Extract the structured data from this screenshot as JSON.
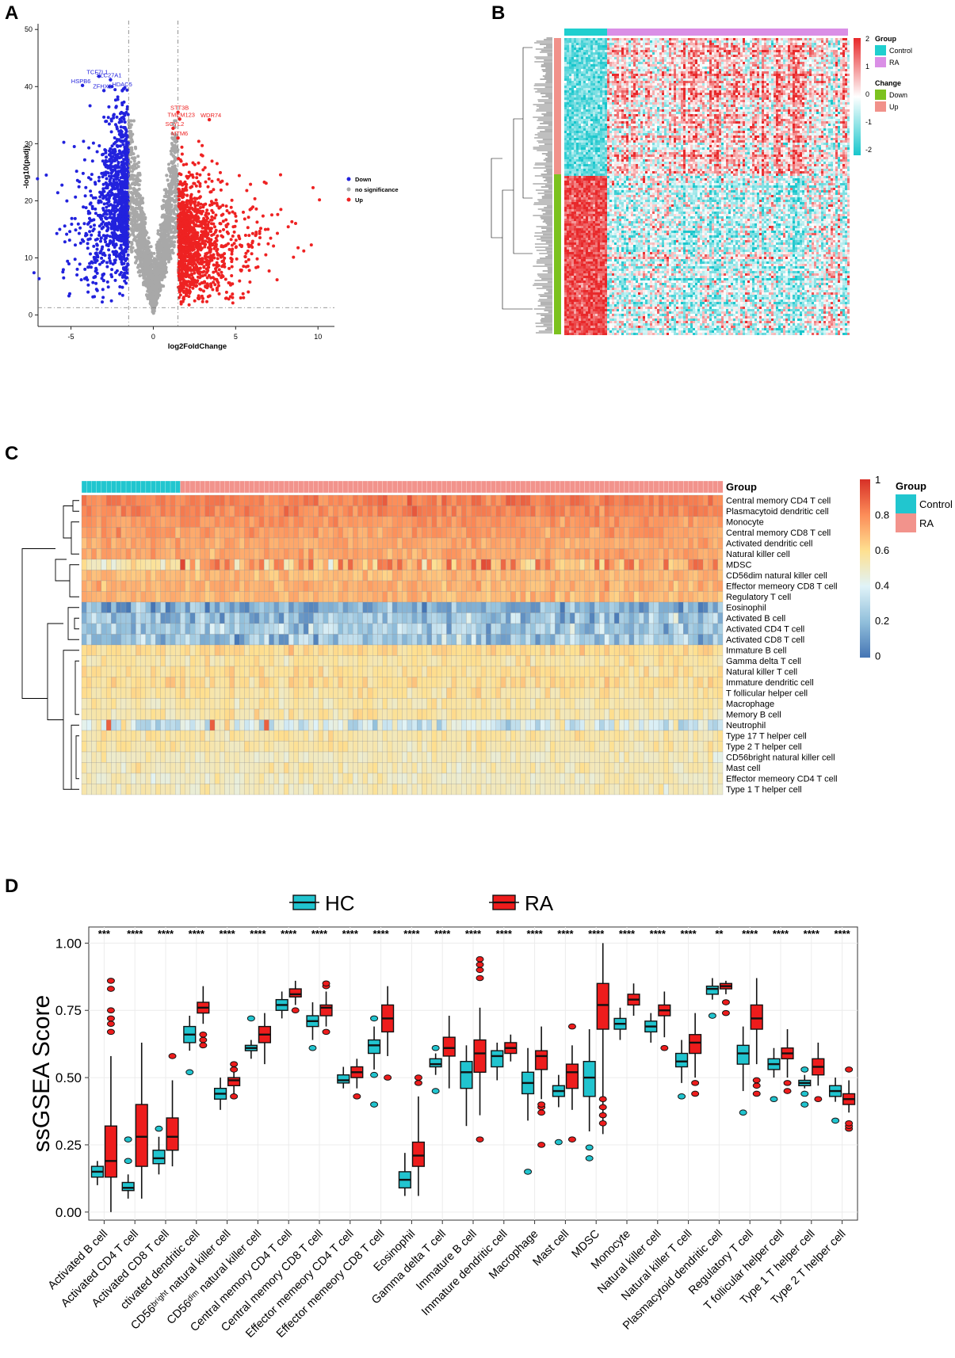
{
  "panels": {
    "a": {
      "letter": "A"
    },
    "b": {
      "letter": "B"
    },
    "c": {
      "letter": "C"
    },
    "d": {
      "letter": "D"
    }
  },
  "chart_data": [
    {
      "id": "volcano",
      "type": "scatter",
      "xlabel": "log2FoldChange",
      "ylabel": "-log10(padj)",
      "xlim": [
        -7,
        11
      ],
      "ylim": [
        -2,
        51
      ],
      "xticks": [
        -5,
        0,
        5,
        10
      ],
      "yticks": [
        0,
        10,
        20,
        30,
        40,
        50
      ],
      "thresholds": {
        "x": [
          -1.5,
          1.5
        ],
        "y": 1.3
      },
      "legend": [
        {
          "label": "Down",
          "color": "#2222dd"
        },
        {
          "label": "no significance",
          "color": "#a8a8a8"
        },
        {
          "label": "Up",
          "color": "#ee2222"
        }
      ],
      "labeled_genes_down": [
        {
          "gene": "TCF7L1",
          "x": -3.3,
          "y": 41.8
        },
        {
          "gene": "SLC27A1",
          "x": -2.6,
          "y": 41.2
        },
        {
          "gene": "HSPB6",
          "x": -4.3,
          "y": 40.2
        },
        {
          "gene": "ZFHX2",
          "x": -3.0,
          "y": 39.3
        },
        {
          "gene": "HDAC5",
          "x": -1.8,
          "y": 39.6
        }
      ],
      "labeled_genes_up": [
        {
          "gene": "STT3B",
          "x": 1.5,
          "y": 35.5
        },
        {
          "gene": "TMEM123",
          "x": 1.6,
          "y": 34.3
        },
        {
          "gene": "WDR74",
          "x": 3.4,
          "y": 34.2
        },
        {
          "gene": "SCYL2",
          "x": 1.2,
          "y": 32.7
        },
        {
          "gene": "MTM6",
          "x": 1.5,
          "y": 31.0
        }
      ]
    },
    {
      "id": "gene-heatmap",
      "type": "heatmap",
      "legend_groups": [
        {
          "title": "Group",
          "items": [
            {
              "label": "Control",
              "color": "#1fcfcf"
            },
            {
              "label": "RA",
              "color": "#da8fe6"
            }
          ]
        },
        {
          "title": "Change",
          "items": [
            {
              "label": "Down",
              "color": "#7cc21f"
            },
            {
              "label": "Up",
              "color": "#f1918a"
            }
          ]
        }
      ],
      "colorbar_ticks": [
        2,
        1,
        0,
        -1,
        -2
      ],
      "colorbar_colors": [
        "#e8282a",
        "#ffffff",
        "#18c6cc"
      ],
      "control_fraction": 0.15,
      "up_fraction": 0.46
    },
    {
      "id": "immune-heatmap",
      "type": "heatmap",
      "group_label": "Group",
      "legend_title": "Group",
      "groups": [
        {
          "label": "Control",
          "color": "#21c6cf"
        },
        {
          "label": "RA",
          "color": "#f2938c"
        }
      ],
      "colorbar_ticks": [
        1,
        0.8,
        0.6,
        0.4,
        0.2,
        0
      ],
      "control_fraction": 0.155,
      "rows": [
        {
          "name": "Central memory CD4 T cell",
          "level": 0.83
        },
        {
          "name": "Plasmacytoid dendritic cell",
          "level": 0.82
        },
        {
          "name": "Monocyte",
          "level": 0.78
        },
        {
          "name": "Central memory CD8 T cell",
          "level": 0.76
        },
        {
          "name": "Activated dendritic cell",
          "level": 0.74
        },
        {
          "name": "Natural killer cell",
          "level": 0.74
        },
        {
          "name": "MDSC",
          "level": 0.73
        },
        {
          "name": "CD56dim natural killer cell",
          "level": 0.69
        },
        {
          "name": "Effector memeory CD8 T cell",
          "level": 0.71
        },
        {
          "name": "Regulatory T cell",
          "level": 0.7
        },
        {
          "name": "Eosinophil",
          "level": 0.16
        },
        {
          "name": "Activated B cell",
          "level": 0.22
        },
        {
          "name": "Activated CD4 T cell",
          "level": 0.26
        },
        {
          "name": "Activated CD8 T cell",
          "level": 0.23
        },
        {
          "name": "Immature  B cell",
          "level": 0.61
        },
        {
          "name": "Gamma delta T cell",
          "level": 0.57
        },
        {
          "name": "Natural killer T cell",
          "level": 0.59
        },
        {
          "name": "Immature dendritic cell",
          "level": 0.6
        },
        {
          "name": "T follicular helper cell",
          "level": 0.57
        },
        {
          "name": "Macrophage",
          "level": 0.55
        },
        {
          "name": "Memory B cell",
          "level": 0.56
        },
        {
          "name": "Neutrophil",
          "level": 0.4
        },
        {
          "name": "Type 17 T helper cell",
          "level": 0.56
        },
        {
          "name": "Type 2 T helper cell",
          "level": 0.55
        },
        {
          "name": "CD56bright natural killer cell",
          "level": 0.52
        },
        {
          "name": "Mast cell",
          "level": 0.53
        },
        {
          "name": "Effector memeory CD4 T cell",
          "level": 0.52
        },
        {
          "name": "Type 1 T helper cell",
          "level": 0.52
        }
      ]
    },
    {
      "id": "ssgsea-boxplot",
      "type": "box",
      "ylabel": "ssGSEA Score",
      "ylim": [
        -0.03,
        1.06
      ],
      "yticks": [
        "0.00",
        "0.25",
        "0.50",
        "0.75",
        "1.00"
      ],
      "legend": [
        {
          "label": "HC",
          "color": "#21c4cf"
        },
        {
          "label": "RA",
          "color": "#ee1c1c"
        }
      ],
      "categories": [
        {
          "label": "Activated B cell",
          "sig": "***",
          "hc": [
            0.1,
            0.13,
            0.15,
            0.17,
            0.19
          ],
          "ra": [
            0.0,
            0.13,
            0.19,
            0.32,
            0.58
          ],
          "hc_out": [],
          "ra_out": [
            0.67,
            0.7,
            0.72,
            0.75,
            0.83,
            0.86
          ]
        },
        {
          "label": "Activated CD4 T cell",
          "sig": "****",
          "hc": [
            0.05,
            0.08,
            0.09,
            0.11,
            0.14
          ],
          "ra": [
            0.05,
            0.17,
            0.28,
            0.4,
            0.63
          ],
          "hc_out": [
            0.19,
            0.27
          ],
          "ra_out": []
        },
        {
          "label": "Activated CD8 T cell",
          "sig": "****",
          "hc": [
            0.14,
            0.18,
            0.2,
            0.23,
            0.28
          ],
          "ra": [
            0.17,
            0.23,
            0.28,
            0.35,
            0.49
          ],
          "hc_out": [
            0.31
          ],
          "ra_out": [
            0.58
          ]
        },
        {
          "label": "Activated dendritic cell",
          "display_label": "ctivated dendritic cell",
          "sig": "****",
          "hc": [
            0.6,
            0.63,
            0.66,
            0.69,
            0.73
          ],
          "ra": [
            0.7,
            0.74,
            0.76,
            0.78,
            0.84
          ],
          "hc_out": [
            0.52
          ],
          "ra_out": [
            0.62,
            0.64,
            0.66
          ]
        },
        {
          "label": "CD56bright natural killer cell",
          "display_label": "CD56ᵇʳⁱᵍʰᵗ natural killer cell",
          "sig": "****",
          "hc": [
            0.38,
            0.42,
            0.44,
            0.46,
            0.5
          ],
          "ra": [
            0.44,
            0.47,
            0.49,
            0.5,
            0.52
          ],
          "hc_out": [],
          "ra_out": [
            0.43,
            0.53,
            0.55
          ]
        },
        {
          "label": "CD56dim natural killer cell",
          "display_label": "CD56ᵈⁱᵐ natural killer cell",
          "sig": "****",
          "hc": [
            0.57,
            0.6,
            0.61,
            0.62,
            0.64
          ],
          "ra": [
            0.55,
            0.63,
            0.66,
            0.69,
            0.74
          ],
          "hc_out": [
            0.72
          ],
          "ra_out": []
        },
        {
          "label": "Central memory CD4 T cell",
          "sig": "****",
          "hc": [
            0.72,
            0.75,
            0.77,
            0.79,
            0.82
          ],
          "ra": [
            0.77,
            0.8,
            0.81,
            0.83,
            0.86
          ],
          "hc_out": [],
          "ra_out": [
            0.75
          ]
        },
        {
          "label": "Central memory CD8 T cell",
          "sig": "****",
          "hc": [
            0.64,
            0.69,
            0.71,
            0.73,
            0.78
          ],
          "ra": [
            0.69,
            0.73,
            0.76,
            0.77,
            0.82
          ],
          "hc_out": [
            0.61
          ],
          "ra_out": [
            0.67,
            0.84,
            0.85
          ]
        },
        {
          "label": "Effector memeory CD4 T cell",
          "sig": "****",
          "hc": [
            0.46,
            0.48,
            0.49,
            0.51,
            0.54
          ],
          "ra": [
            0.46,
            0.5,
            0.52,
            0.54,
            0.57
          ],
          "hc_out": [],
          "ra_out": [
            0.43
          ]
        },
        {
          "label": "Effector memeory CD8 T cell",
          "sig": "****",
          "hc": [
            0.53,
            0.59,
            0.62,
            0.64,
            0.69
          ],
          "ra": [
            0.58,
            0.67,
            0.72,
            0.77,
            0.84
          ],
          "hc_out": [
            0.4,
            0.51,
            0.72
          ],
          "ra_out": [
            0.5
          ]
        },
        {
          "label": "Eosinophil",
          "sig": "****",
          "hc": [
            0.06,
            0.09,
            0.12,
            0.15,
            0.22
          ],
          "ra": [
            0.06,
            0.17,
            0.21,
            0.26,
            0.43
          ],
          "hc_out": [],
          "ra_out": [
            0.48,
            0.5
          ]
        },
        {
          "label": "Gamma delta T cell",
          "sig": "****",
          "hc": [
            0.51,
            0.54,
            0.55,
            0.57,
            0.59
          ],
          "ra": [
            0.46,
            0.58,
            0.61,
            0.65,
            0.73
          ],
          "hc_out": [
            0.45,
            0.61
          ],
          "ra_out": []
        },
        {
          "label": "Immature B cell",
          "sig": "****",
          "hc": [
            0.32,
            0.46,
            0.52,
            0.56,
            0.62
          ],
          "ra": [
            0.36,
            0.52,
            0.59,
            0.64,
            0.76
          ],
          "hc_out": [],
          "ra_out": [
            0.27,
            0.87,
            0.9,
            0.92,
            0.94
          ]
        },
        {
          "label": "Immature dendritic cell",
          "sig": "****",
          "hc": [
            0.49,
            0.54,
            0.58,
            0.6,
            0.63
          ],
          "ra": [
            0.56,
            0.59,
            0.61,
            0.63,
            0.66
          ],
          "hc_out": [],
          "ra_out": []
        },
        {
          "label": "Macrophage",
          "sig": "****",
          "hc": [
            0.34,
            0.44,
            0.48,
            0.52,
            0.61
          ],
          "ra": [
            0.42,
            0.53,
            0.58,
            0.6,
            0.69
          ],
          "hc_out": [
            0.15
          ],
          "ra_out": [
            0.25,
            0.37,
            0.39,
            0.4
          ]
        },
        {
          "label": "Mast cell",
          "sig": "****",
          "hc": [
            0.39,
            0.43,
            0.45,
            0.47,
            0.51
          ],
          "ra": [
            0.38,
            0.46,
            0.52,
            0.55,
            0.62
          ],
          "hc_out": [
            0.26
          ],
          "ra_out": [
            0.27,
            0.69
          ]
        },
        {
          "label": "MDSC",
          "sig": "****",
          "hc": [
            0.3,
            0.43,
            0.5,
            0.56,
            0.68
          ],
          "ra": [
            0.29,
            0.68,
            0.77,
            0.85,
            1.0
          ],
          "hc_out": [
            0.2,
            0.24
          ],
          "ra_out": [
            0.33,
            0.36,
            0.39,
            0.42
          ]
        },
        {
          "label": "Monocyte",
          "sig": "****",
          "hc": [
            0.64,
            0.68,
            0.7,
            0.72,
            0.76
          ],
          "ra": [
            0.73,
            0.77,
            0.79,
            0.81,
            0.85
          ],
          "hc_out": [],
          "ra_out": []
        },
        {
          "label": "Natural killer cell",
          "sig": "****",
          "hc": [
            0.63,
            0.67,
            0.69,
            0.71,
            0.74
          ],
          "ra": [
            0.65,
            0.73,
            0.75,
            0.77,
            0.82
          ],
          "hc_out": [],
          "ra_out": [
            0.61
          ]
        },
        {
          "label": "Natural killer T cell",
          "sig": "****",
          "hc": [
            0.48,
            0.54,
            0.56,
            0.59,
            0.64
          ],
          "ra": [
            0.5,
            0.59,
            0.63,
            0.66,
            0.74
          ],
          "hc_out": [
            0.43
          ],
          "ra_out": [
            0.44,
            0.48
          ]
        },
        {
          "label": "Plasmacytoid dendritic cell",
          "sig": "**",
          "hc": [
            0.79,
            0.81,
            0.83,
            0.84,
            0.87
          ],
          "ra": [
            0.81,
            0.83,
            0.84,
            0.85,
            0.86
          ],
          "hc_out": [
            0.73
          ],
          "ra_out": [
            0.74,
            0.78
          ]
        },
        {
          "label": "Regulatory T cell",
          "sig": "****",
          "hc": [
            0.45,
            0.55,
            0.59,
            0.62,
            0.69
          ],
          "ra": [
            0.55,
            0.68,
            0.72,
            0.77,
            0.87
          ],
          "hc_out": [
            0.37
          ],
          "ra_out": [
            0.44,
            0.47,
            0.49
          ]
        },
        {
          "label": "T follicular helper cell",
          "sig": "****",
          "hc": [
            0.5,
            0.53,
            0.55,
            0.57,
            0.61
          ],
          "ra": [
            0.5,
            0.57,
            0.59,
            0.61,
            0.68
          ],
          "hc_out": [
            0.42
          ],
          "ra_out": [
            0.45,
            0.48
          ]
        },
        {
          "label": "Type 1 T helper cell",
          "sig": "****",
          "hc": [
            0.46,
            0.47,
            0.48,
            0.49,
            0.51
          ],
          "ra": [
            0.47,
            0.51,
            0.54,
            0.57,
            0.63
          ],
          "hc_out": [
            0.4,
            0.44,
            0.53
          ],
          "ra_out": [
            0.42
          ]
        },
        {
          "label": "Type 2 T helper cell",
          "sig": "****",
          "hc": [
            0.41,
            0.43,
            0.45,
            0.47,
            0.5
          ],
          "ra": [
            0.37,
            0.4,
            0.42,
            0.44,
            0.49
          ],
          "hc_out": [
            0.34
          ],
          "ra_out": [
            0.31,
            0.32,
            0.33,
            0.53
          ]
        }
      ]
    }
  ]
}
